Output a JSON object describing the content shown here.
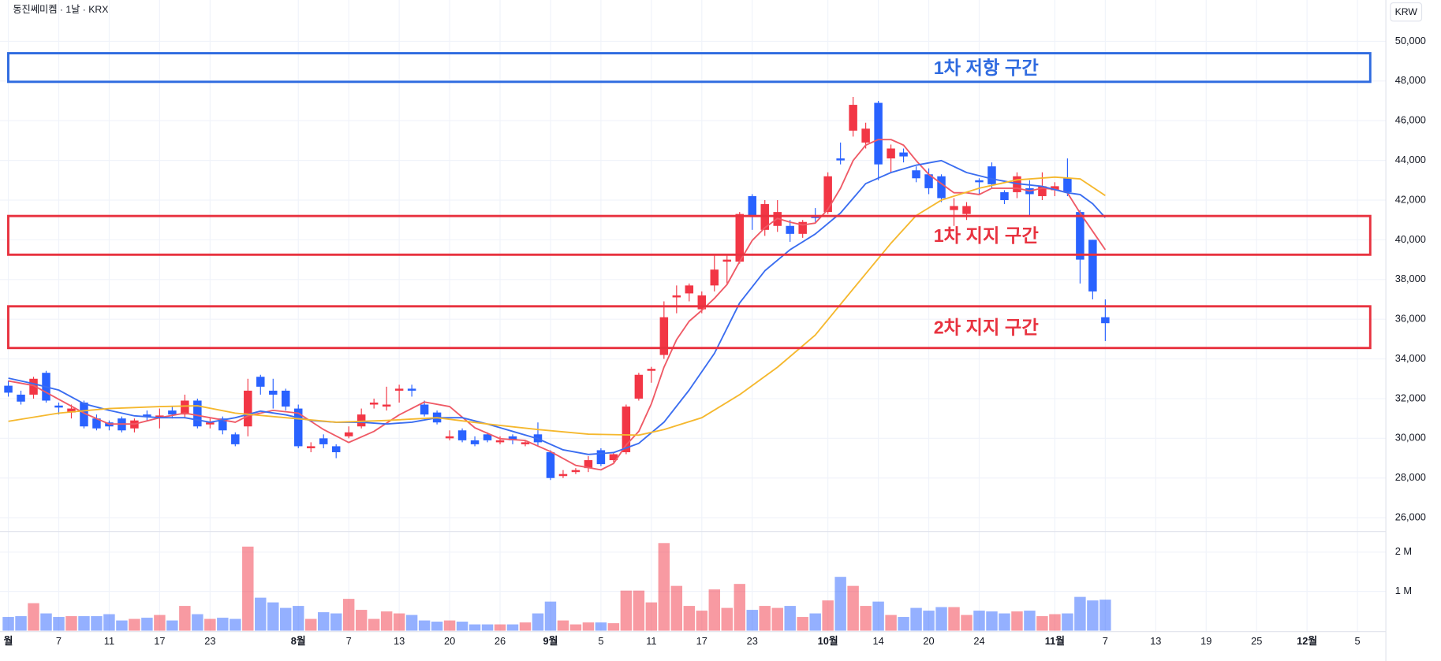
{
  "chart_data": {
    "type": "candlestick",
    "title": "동진쎄미켐 · 1날 · KRX",
    "currency": "KRW",
    "up_color": "#f23645",
    "down_color": "#2962ff",
    "grid": true,
    "xlim": [
      -0.66,
      107.94
    ],
    "xticks": [
      {
        "value": 0,
        "label": "월"
      },
      {
        "value": 4,
        "label": "7"
      },
      {
        "value": 8,
        "label": "11"
      },
      {
        "value": 12,
        "label": "17"
      },
      {
        "value": 16,
        "label": "23"
      },
      {
        "value": 23,
        "label": "8월"
      },
      {
        "value": 27,
        "label": "7"
      },
      {
        "value": 31,
        "label": "13"
      },
      {
        "value": 35,
        "label": "20"
      },
      {
        "value": 39,
        "label": "26"
      },
      {
        "value": 43,
        "label": "9월"
      },
      {
        "value": 47,
        "label": "5"
      },
      {
        "value": 51,
        "label": "11"
      },
      {
        "value": 55,
        "label": "17"
      },
      {
        "value": 59,
        "label": "23"
      },
      {
        "value": 65,
        "label": "10월"
      },
      {
        "value": 69,
        "label": "14"
      },
      {
        "value": 73,
        "label": "20"
      },
      {
        "value": 77,
        "label": "24"
      },
      {
        "value": 83,
        "label": "11월"
      },
      {
        "value": 87,
        "label": "7"
      },
      {
        "value": 91,
        "label": "13"
      },
      {
        "value": 95,
        "label": "19"
      },
      {
        "value": 99,
        "label": "25"
      },
      {
        "value": 103,
        "label": "12월"
      },
      {
        "value": 107,
        "label": "5"
      }
    ],
    "ylim": [
      25350,
      52080
    ],
    "yticks": [
      {
        "value": 26000,
        "label": "26,000"
      },
      {
        "value": 28000,
        "label": "28,000"
      },
      {
        "value": 30000,
        "label": "30,000"
      },
      {
        "value": 32000,
        "label": "32,000"
      },
      {
        "value": 34000,
        "label": "34,000"
      },
      {
        "value": 36000,
        "label": "36,000"
      },
      {
        "value": 38000,
        "label": "38,000"
      },
      {
        "value": 40000,
        "label": "40,000"
      },
      {
        "value": 42000,
        "label": "42,000"
      },
      {
        "value": 44000,
        "label": "44,000"
      },
      {
        "value": 46000,
        "label": "46,000"
      },
      {
        "value": 48000,
        "label": "48,000"
      },
      {
        "value": 50000,
        "label": "50,000"
      }
    ],
    "volume_ylim": [
      0,
      2500000
    ],
    "volume_ticks": [
      {
        "value": 1000000,
        "label": "1 M"
      },
      {
        "value": 2000000,
        "label": "2 M"
      }
    ],
    "open": [
      32650,
      32200,
      32200,
      33300,
      31650,
      31300,
      31800,
      31000,
      30800,
      31000,
      30500,
      31200,
      31050,
      31400,
      31200,
      31900,
      30700,
      31000,
      30200,
      30600,
      33100,
      32400,
      32400,
      31500,
      29500,
      30000,
      29600,
      30100,
      30600,
      31700,
      31600,
      32400,
      32500,
      31700,
      31300,
      30000,
      30400,
      29900,
      30200,
      29800,
      30100,
      29700,
      30200,
      29300,
      28100,
      28300,
      28500,
      29400,
      28900,
      29300,
      32000,
      33400,
      34200,
      37100,
      37300,
      36500,
      37700,
      38900,
      38900,
      42200,
      40500,
      40700,
      40700,
      40300,
      41200,
      41400,
      44100,
      45500,
      44900,
      46900,
      44100,
      44400,
      43500,
      43300,
      43200,
      41500,
      41300,
      43000,
      43700,
      42400,
      42400,
      42600,
      42200,
      42500,
      43100,
      41400,
      40000,
      36100
    ],
    "high": [
      32900,
      32400,
      33100,
      33400,
      31800,
      31700,
      31900,
      31200,
      30900,
      31100,
      31000,
      31400,
      31500,
      31600,
      32200,
      32000,
      31000,
      31100,
      30300,
      33000,
      33200,
      33000,
      32500,
      31700,
      29800,
      30200,
      29700,
      30600,
      31500,
      32000,
      32600,
      32700,
      32700,
      31900,
      31400,
      30400,
      30500,
      30100,
      30300,
      30100,
      30200,
      29900,
      30800,
      29400,
      28400,
      28500,
      29100,
      29500,
      29300,
      31700,
      33300,
      33600,
      36900,
      37700,
      37800,
      37400,
      39200,
      39200,
      41400,
      42300,
      42000,
      42000,
      41000,
      41000,
      41600,
      43400,
      44900,
      47200,
      45900,
      47000,
      44800,
      44600,
      43700,
      43600,
      43300,
      42100,
      41900,
      43100,
      43900,
      42500,
      43400,
      43000,
      43400,
      42900,
      44100,
      41500,
      40000,
      37000
    ],
    "low": [
      32100,
      31700,
      32000,
      31800,
      31200,
      31000,
      30500,
      30400,
      30400,
      30300,
      30300,
      30900,
      30500,
      31000,
      31000,
      30500,
      30500,
      30200,
      29600,
      30100,
      32200,
      31500,
      31400,
      29500,
      29300,
      29500,
      29000,
      30000,
      30500,
      31500,
      31400,
      31800,
      32100,
      31100,
      30700,
      29900,
      29800,
      29600,
      29800,
      29700,
      29700,
      29600,
      29600,
      27900,
      28000,
      28200,
      28300,
      28600,
      28800,
      29200,
      31900,
      32800,
      34000,
      36300,
      36900,
      36300,
      37400,
      37800,
      38800,
      40500,
      40200,
      40400,
      39900,
      40100,
      40900,
      41300,
      43800,
      45200,
      44600,
      43000,
      43400,
      43900,
      42900,
      42300,
      41900,
      40700,
      41000,
      42300,
      42600,
      41800,
      42100,
      41200,
      42000,
      42200,
      42200,
      37800,
      37000,
      34900
    ],
    "close": [
      32300,
      31850,
      33000,
      31900,
      31550,
      31500,
      30600,
      30500,
      30600,
      30400,
      30900,
      31100,
      31150,
      31200,
      31900,
      30600,
      30800,
      30400,
      29700,
      32400,
      32600,
      32200,
      31600,
      29600,
      29600,
      29700,
      29300,
      30300,
      31200,
      31800,
      31700,
      32500,
      32400,
      31200,
      30800,
      30100,
      29900,
      29700,
      29900,
      29900,
      29900,
      29800,
      29800,
      28000,
      28200,
      28400,
      28900,
      28700,
      29200,
      31600,
      33200,
      33500,
      36100,
      37200,
      37700,
      37200,
      38500,
      39000,
      41300,
      41200,
      41800,
      41400,
      40300,
      40900,
      41100,
      43200,
      44000,
      46800,
      45600,
      43800,
      44600,
      44200,
      43100,
      42600,
      42100,
      41700,
      41700,
      42900,
      42800,
      42000,
      43200,
      42300,
      42700,
      42700,
      42400,
      39000,
      37400,
      35800
    ],
    "volume": [
      350000,
      370000,
      700000,
      440000,
      350000,
      370000,
      370000,
      370000,
      420000,
      260000,
      300000,
      330000,
      400000,
      260000,
      630000,
      420000,
      300000,
      330000,
      300000,
      2140000,
      840000,
      720000,
      580000,
      630000,
      300000,
      470000,
      440000,
      810000,
      530000,
      300000,
      490000,
      440000,
      400000,
      260000,
      230000,
      260000,
      230000,
      160000,
      160000,
      160000,
      160000,
      210000,
      440000,
      740000,
      260000,
      160000,
      210000,
      210000,
      190000,
      1020000,
      1020000,
      720000,
      2230000,
      1140000,
      630000,
      510000,
      1050000,
      580000,
      1190000,
      530000,
      630000,
      580000,
      630000,
      350000,
      440000,
      770000,
      1370000,
      1140000,
      630000,
      740000,
      400000,
      350000,
      580000,
      510000,
      600000,
      600000,
      400000,
      510000,
      490000,
      440000,
      490000,
      510000,
      370000,
      420000,
      440000,
      860000,
      770000,
      790000
    ],
    "ma": [
      {
        "color": "#ef5a66",
        "x": [
          0,
          2,
          4,
          6,
          8,
          10,
          12,
          14,
          16,
          18,
          19,
          21,
          23,
          25,
          27,
          29,
          31,
          33,
          35,
          37,
          39,
          41,
          43,
          45,
          47,
          48,
          49,
          50,
          51,
          52,
          53,
          54,
          55,
          56,
          57,
          58,
          59,
          60,
          61,
          62,
          63,
          64,
          65,
          66,
          67,
          68,
          69,
          70,
          71,
          72,
          73,
          74,
          75,
          76,
          77,
          78,
          79,
          80,
          81,
          82,
          83,
          84,
          85,
          86,
          87
        ],
        "values": [
          32890,
          32660,
          31970,
          31270,
          30720,
          30720,
          31040,
          31270,
          31040,
          30810,
          31130,
          31410,
          31270,
          30440,
          29790,
          30350,
          31180,
          31830,
          31600,
          30530,
          29980,
          29890,
          29330,
          28640,
          28410,
          28730,
          29660,
          30350,
          31740,
          33580,
          34970,
          35900,
          36450,
          37050,
          37750,
          38900,
          39970,
          40610,
          41080,
          40890,
          40750,
          40840,
          41540,
          42600,
          43990,
          44770,
          45050,
          45050,
          44770,
          43990,
          43300,
          42830,
          42370,
          42370,
          42280,
          42600,
          42600,
          42600,
          42460,
          42600,
          42550,
          42370,
          41350,
          40430,
          39500
        ]
      },
      {
        "color": "#3a6df0",
        "x": [
          0,
          2,
          4,
          6,
          8,
          10,
          12,
          14,
          16,
          18,
          20,
          22,
          24,
          26,
          28,
          30,
          32,
          34,
          36,
          38,
          40,
          42,
          44,
          46,
          48,
          50,
          52,
          54,
          56,
          58,
          60,
          62,
          64,
          66,
          68,
          70,
          72,
          74,
          76,
          78,
          80,
          82,
          84,
          85,
          86,
          87
        ],
        "values": [
          33030,
          32750,
          32430,
          31740,
          31410,
          31130,
          31040,
          31040,
          30810,
          31040,
          31370,
          31180,
          30900,
          30810,
          30810,
          30720,
          30810,
          31040,
          31040,
          30720,
          30350,
          29980,
          29420,
          29190,
          29280,
          29750,
          30810,
          32430,
          34280,
          36820,
          38440,
          39500,
          40290,
          41350,
          42830,
          43390,
          43760,
          43990,
          43390,
          43070,
          42830,
          42690,
          42370,
          42280,
          41820,
          41120
        ]
      },
      {
        "color": "#f5b82e",
        "x": [
          0,
          4,
          8,
          12,
          15,
          18,
          22,
          26,
          30,
          34,
          38,
          42,
          46,
          50,
          52,
          55,
          58,
          61,
          64,
          67,
          70,
          72,
          74,
          77,
          80,
          83,
          85,
          87
        ],
        "values": [
          30860,
          31270,
          31500,
          31600,
          31640,
          31270,
          31040,
          30810,
          30900,
          31040,
          30720,
          30440,
          30210,
          30160,
          30440,
          31040,
          32200,
          33580,
          35200,
          37520,
          39830,
          41220,
          42000,
          42600,
          43020,
          43160,
          43070,
          42230
        ]
      }
    ],
    "annotations": [
      {
        "text": "1차 저항 구간",
        "color": "#2f6be0",
        "ymin": 47960,
        "ymax": 49400
      },
      {
        "text": "1차 지지 구간",
        "color": "#e8323f",
        "ymin": 39250,
        "ymax": 41200
      },
      {
        "text": "2차 지지 구간",
        "color": "#e8323f",
        "ymin": 34550,
        "ymax": 36650
      }
    ]
  }
}
